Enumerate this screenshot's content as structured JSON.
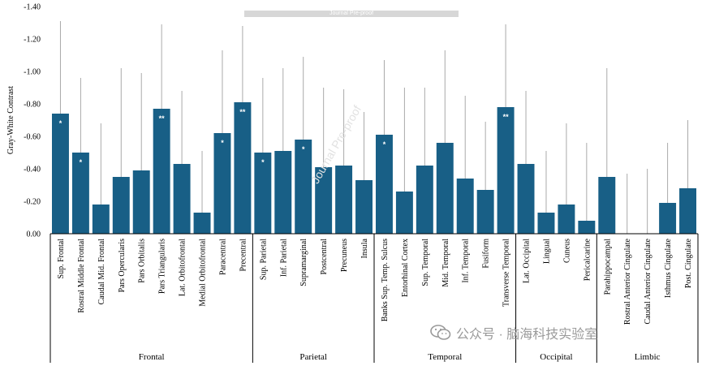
{
  "chart_data": {
    "type": "bar",
    "ylabel": "Gray-White Contrast",
    "ylim": [
      0,
      -1.4
    ],
    "y_ticks": [
      "0.00",
      "-0.20",
      "-0.40",
      "-0.60",
      "-0.80",
      "-1.00",
      "-1.20",
      "-1.40"
    ],
    "y_tick_values": [
      0,
      -0.2,
      -0.4,
      -0.6,
      -0.8,
      -1.0,
      -1.2,
      -1.4
    ],
    "bar_color": "#185f86",
    "error_color": "#aaaaaa",
    "categories": [
      "Sup. Frontal",
      "Rostral Middle Frontal",
      "Caudal Mid. Frontal",
      "Pars Opercularis",
      "Pars Orbitalis",
      "Pars Triangularis",
      "Lat. Orbitofrontal",
      "Medial Orbitofrontal",
      "Paracentral",
      "Precentral",
      "Sup. Parietal",
      "Inf. Parietal",
      "Supramarginal",
      "Postcentral",
      "Precuneus",
      "Insula",
      "Banks Sup. Temp. Sulcus",
      "Entorhinal Cortex",
      "Sup. Temporal",
      "Mid. Temporal",
      "Inf. Temporal",
      "Fusiform",
      "Transverse Temporal",
      "Lat. Occipital",
      "Lingual",
      "Cuneus",
      "Pericalcarine",
      "Parahippocampal",
      "Rostral Anterior Cingulate",
      "Caudal Anterior Cingulate",
      "Isthmus Cingulate",
      "Post. Cingulate"
    ],
    "values": [
      -0.74,
      -0.5,
      -0.18,
      -0.35,
      -0.39,
      -0.77,
      -0.43,
      -0.13,
      -0.62,
      -0.81,
      -0.5,
      -0.51,
      -0.58,
      -0.41,
      -0.42,
      -0.33,
      -0.61,
      -0.26,
      -0.42,
      -0.56,
      -0.34,
      -0.27,
      -0.78,
      -0.43,
      -0.13,
      -0.18,
      -0.08,
      -0.35,
      0.0,
      0.0,
      -0.19,
      -0.28
    ],
    "error_upper": [
      -1.31,
      -0.96,
      -0.68,
      -1.02,
      -0.99,
      -1.29,
      -0.88,
      -0.51,
      -1.13,
      -1.28,
      -0.96,
      -1.02,
      -1.09,
      -0.9,
      -0.89,
      -0.75,
      -1.07,
      -0.9,
      -0.9,
      -1.13,
      -0.85,
      -0.69,
      -1.29,
      -0.88,
      -0.51,
      -0.68,
      -0.56,
      -1.02,
      -0.37,
      -0.4,
      -0.56,
      -0.7
    ],
    "significance": [
      "*",
      "*",
      "",
      "",
      "",
      "**",
      "",
      "",
      "*",
      "**",
      "*",
      "",
      "*",
      "",
      "",
      "",
      "*",
      "",
      "",
      "",
      "",
      "",
      "**",
      "",
      "",
      "",
      "",
      "",
      "",
      "",
      "",
      ""
    ],
    "groups": [
      {
        "name": "Frontal",
        "count": 10
      },
      {
        "name": "Parietal",
        "count": 6
      },
      {
        "name": "Temporal",
        "count": 7
      },
      {
        "name": "Occipital",
        "count": 4
      },
      {
        "name": "Limbic",
        "count": 5
      }
    ]
  },
  "watermarks": {
    "proof_banner": "Journal Pre-proof",
    "diagonal": "Journal Pre-proof",
    "wechat": "公众号 · 脑海科技实验室"
  }
}
